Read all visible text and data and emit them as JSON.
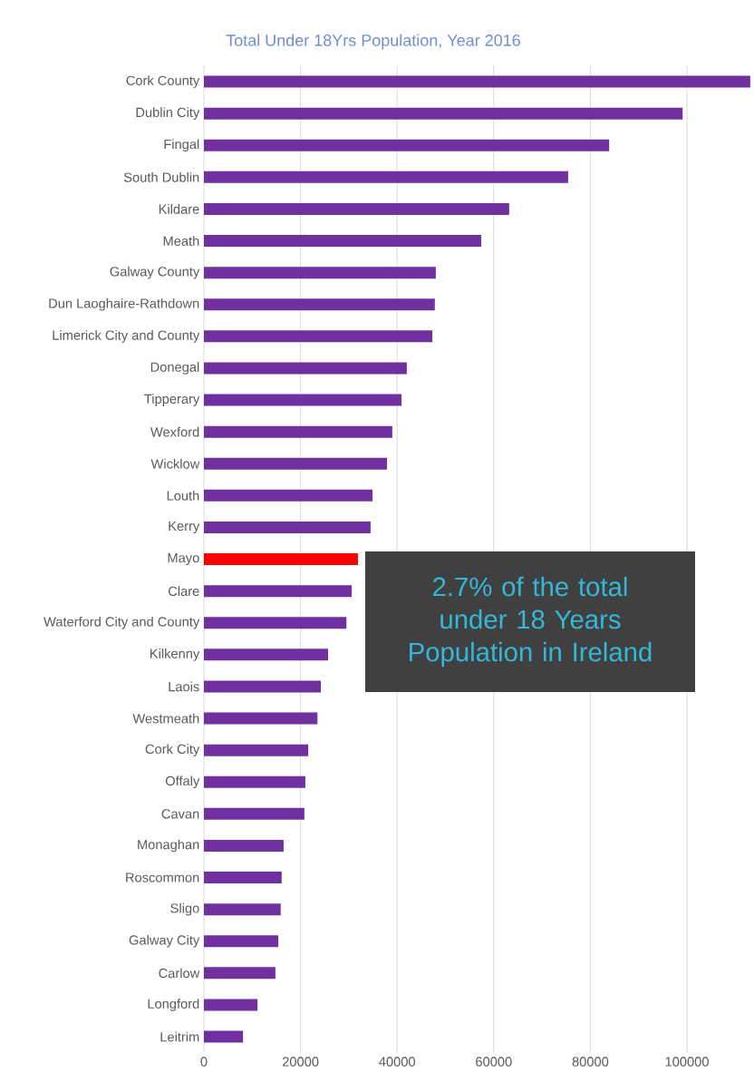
{
  "chart_data": {
    "type": "bar",
    "orientation": "horizontal",
    "title": "Total Under 18Yrs Population, Year 2016",
    "categories": [
      "Cork County",
      "Dublin City",
      "Fingal",
      "South Dublin",
      "Kildare",
      "Meath",
      "Galway County",
      "Dun Laoghaire-Rathdown",
      "Limerick City and County",
      "Donegal",
      "Tipperary",
      "Wexford",
      "Wicklow",
      "Louth",
      "Kerry",
      "Mayo",
      "Clare",
      "Waterford City and County",
      "Kilkenny",
      "Laois",
      "Westmeath",
      "Cork City",
      "Offaly",
      "Cavan",
      "Monaghan",
      "Roscommon",
      "Sligo",
      "Galway City",
      "Carlow",
      "Longford",
      "Leitrim"
    ],
    "values": [
      113100,
      99100,
      83900,
      75400,
      63200,
      57400,
      48000,
      47800,
      47300,
      42000,
      40900,
      39000,
      37900,
      34900,
      34500,
      31900,
      30600,
      29500,
      25700,
      24200,
      23500,
      21600,
      21000,
      20800,
      16500,
      16100,
      15900,
      15400,
      14800,
      11100,
      8100
    ],
    "colors": [
      "#7030a0",
      "#7030a0",
      "#7030a0",
      "#7030a0",
      "#7030a0",
      "#7030a0",
      "#7030a0",
      "#7030a0",
      "#7030a0",
      "#7030a0",
      "#7030a0",
      "#7030a0",
      "#7030a0",
      "#7030a0",
      "#7030a0",
      "#ff0000",
      "#7030a0",
      "#7030a0",
      "#7030a0",
      "#7030a0",
      "#7030a0",
      "#7030a0",
      "#7030a0",
      "#7030a0",
      "#7030a0",
      "#7030a0",
      "#7030a0",
      "#7030a0",
      "#7030a0",
      "#7030a0",
      "#7030a0"
    ],
    "xlim": [
      0,
      113500
    ],
    "xticks": [
      0,
      20000,
      40000,
      60000,
      80000,
      100000
    ],
    "grid": "x",
    "annotations": [
      "2.7% of the total under 18 Years Population in Ireland"
    ]
  }
}
